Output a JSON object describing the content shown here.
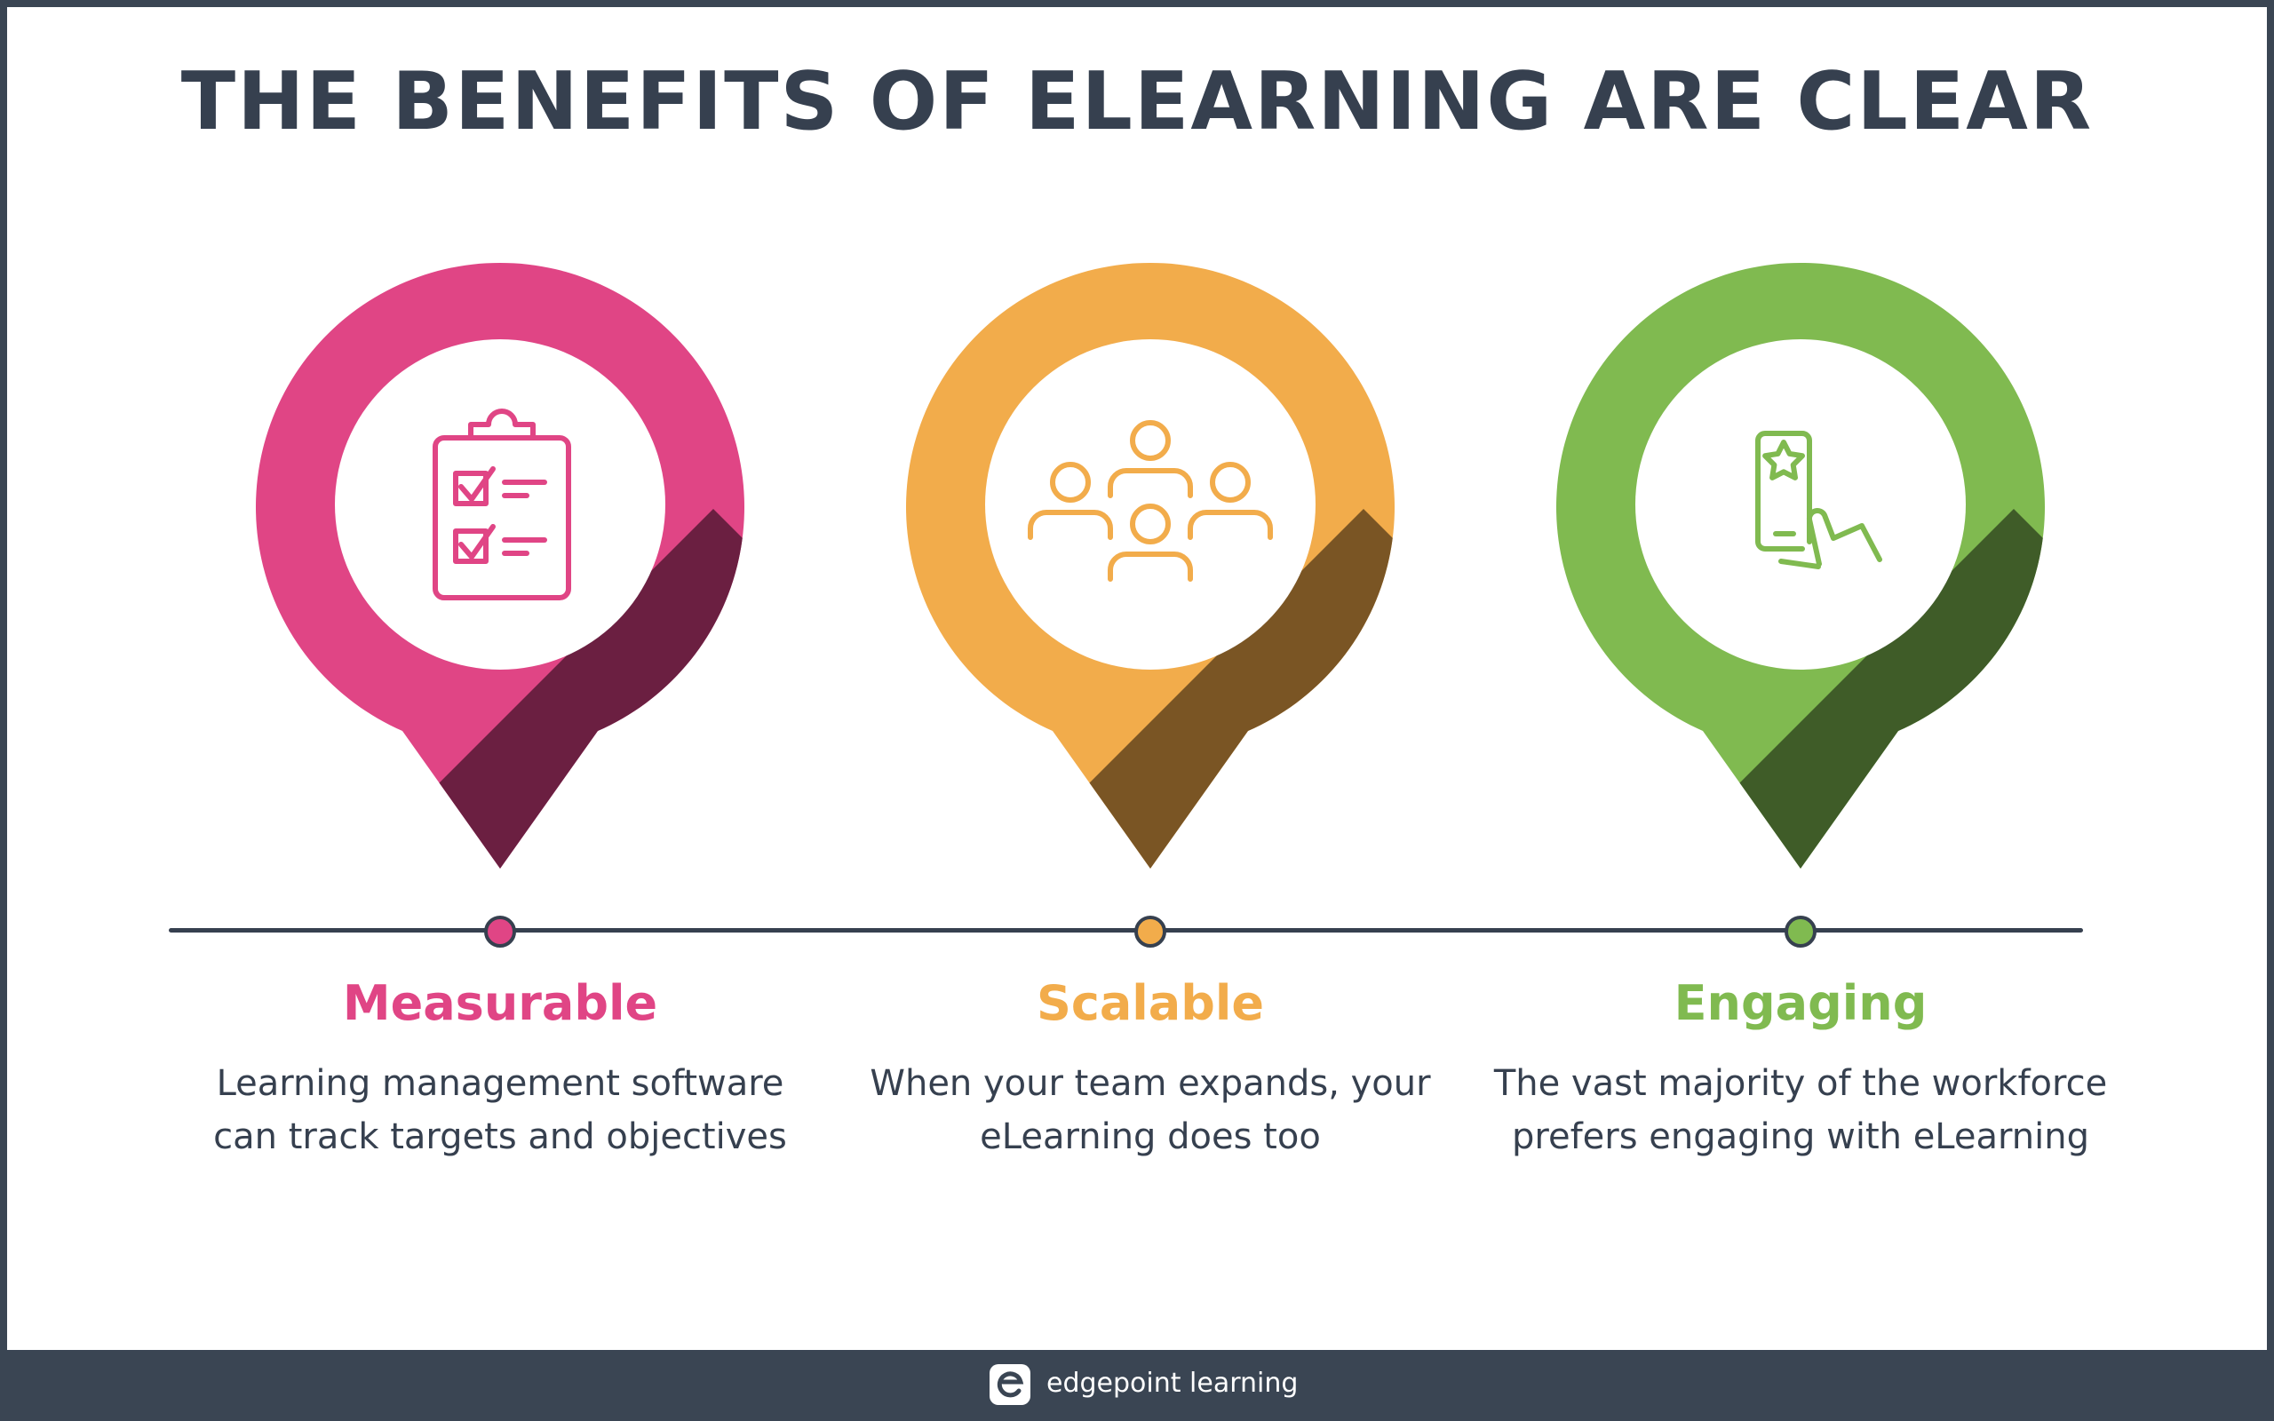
{
  "title": "THE BENEFITS OF ELEARNING ARE CLEAR",
  "cards": [
    {
      "title": "Measurable",
      "description": "Learning management software can track targets and objectives",
      "icon": "clipboard-checklist-icon",
      "color": "#e04585",
      "shadow": "#6b1f41"
    },
    {
      "title": "Scalable",
      "description": "When your team expands, your eLearning does too",
      "icon": "team-people-icon",
      "color": "#f2ac4b",
      "shadow": "#7a5524"
    },
    {
      "title": "Engaging",
      "description": "The vast majority of the workforce prefers engaging with eLearning",
      "icon": "phone-star-tap-icon",
      "color": "#80ba50",
      "shadow": "#3f5c28"
    }
  ],
  "footer": {
    "brand": "edgepoint learning",
    "logo": "edgepoint-logo-icon"
  },
  "colors": {
    "text": "#36404f",
    "footer_bg": "#3a4553",
    "background": "#ffffff"
  }
}
